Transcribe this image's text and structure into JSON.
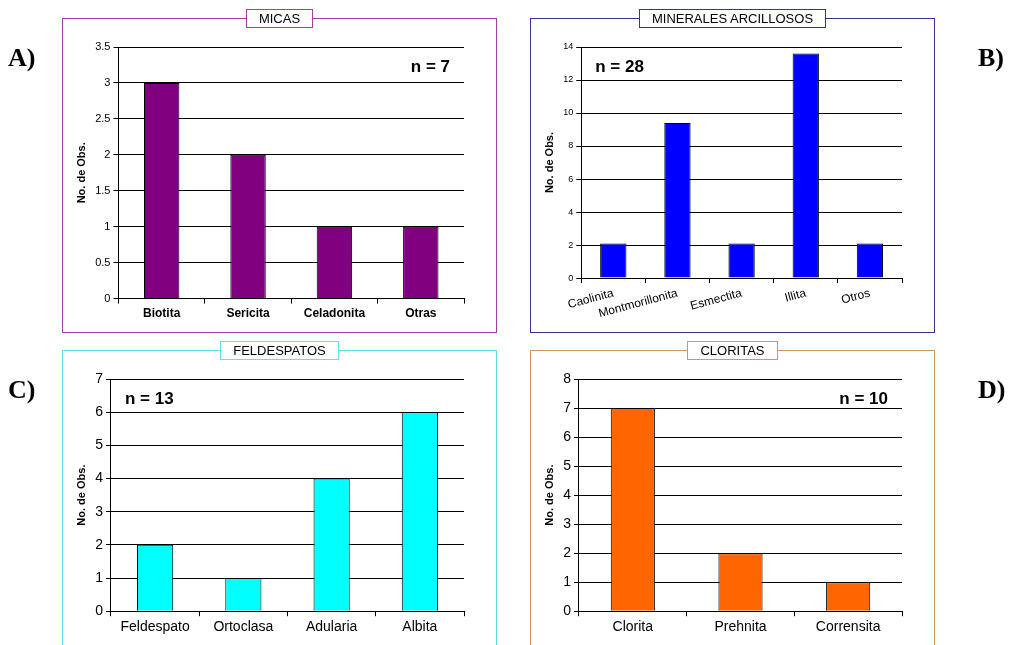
{
  "chart_data": [
    {
      "type": "bar",
      "title": "MICAS",
      "ylabel": "No. de Obs.",
      "categories": [
        "Biotita",
        "Sericita",
        "Celadonita",
        "Otras"
      ],
      "values": [
        3,
        2,
        1,
        1
      ],
      "color": "#800080",
      "ylim": [
        0,
        3.5
      ],
      "yticks": [
        0,
        0.5,
        1,
        1.5,
        2,
        2.5,
        3,
        3.5
      ],
      "grid": "y",
      "annotations": [
        "A)",
        "n = 7"
      ]
    },
    {
      "type": "bar",
      "title": "MINERALES ARCILLOSOS",
      "ylabel": "No. de Obs.",
      "categories": [
        "Caolinita",
        "Montmorillonita",
        "Esmectita",
        "Illita",
        "Otros"
      ],
      "values": [
        2.1,
        9.4,
        2.1,
        13.6,
        2.1
      ],
      "color": "#0000ff",
      "ylim": [
        0,
        14
      ],
      "yticks": [
        0,
        2,
        4,
        6,
        8,
        10,
        12,
        14
      ],
      "grid": "y",
      "annotations": [
        "B)",
        "n = 28"
      ]
    },
    {
      "type": "bar",
      "title": "FELDESPATOS",
      "ylabel": "No. de Obs.",
      "categories": [
        "Feldespato",
        "Ortoclasa",
        "Adularia",
        "Albita"
      ],
      "values": [
        2,
        1,
        4,
        6
      ],
      "color": "#00ffff",
      "ylim": [
        0,
        7
      ],
      "yticks": [
        0,
        1,
        2,
        3,
        4,
        5,
        6,
        7
      ],
      "grid": "y",
      "annotations": [
        "C)",
        "n = 13"
      ]
    },
    {
      "type": "bar",
      "title": "CLORITAS",
      "ylabel": "No. de Obs.",
      "categories": [
        "Clorita",
        "Prehnita",
        "Corrensita"
      ],
      "values": [
        7,
        2,
        1
      ],
      "color": "#ff6600",
      "ylim": [
        0,
        8
      ],
      "yticks": [
        0,
        1,
        2,
        3,
        4,
        5,
        6,
        7,
        8
      ],
      "grid": "y",
      "annotations": [
        "D)",
        "n = 10"
      ]
    }
  ]
}
